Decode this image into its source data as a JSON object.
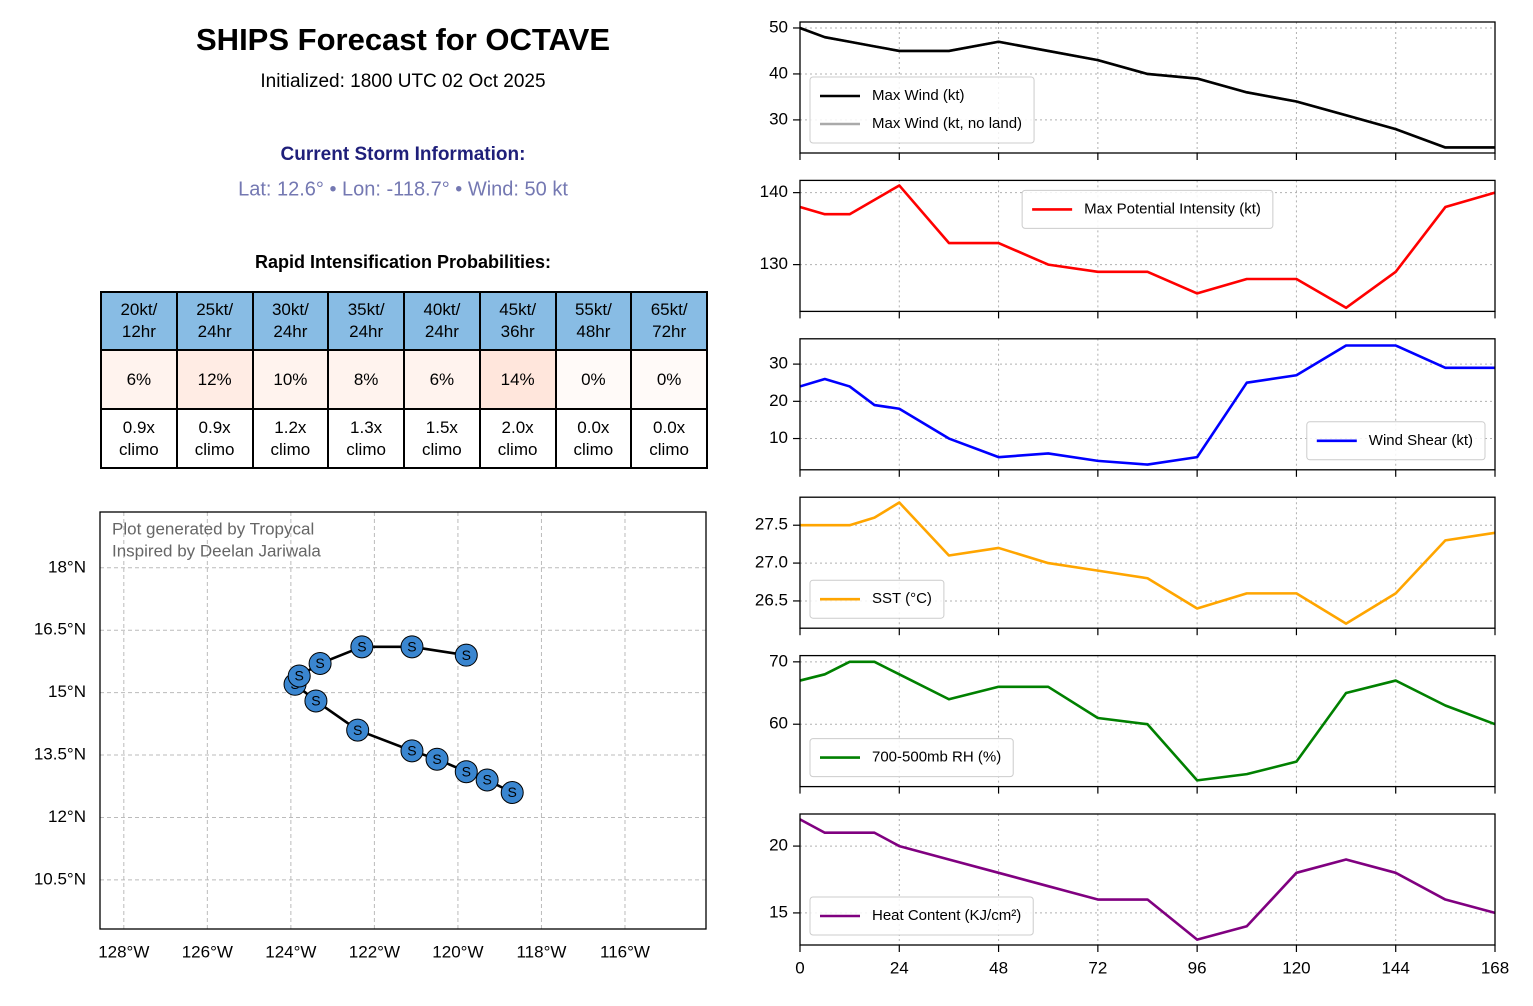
{
  "header": {
    "title": "SHIPS Forecast for OCTAVE",
    "subtitle": "Initialized: 1800 UTC 02 Oct 2025",
    "storm_heading": "Current Storm Information:",
    "storm_info": "Lat: 12.6° • Lon: -118.7° • Wind: 50 kt",
    "ri_heading": "Rapid Intensification Probabilities:"
  },
  "table": {
    "header": [
      "20kt/\n12hr",
      "25kt/\n24hr",
      "30kt/\n24hr",
      "35kt/\n24hr",
      "40kt/\n24hr",
      "45kt/\n36hr",
      "55kt/\n48hr",
      "65kt/\n72hr"
    ],
    "rows": [
      [
        "6%",
        "12%",
        "10%",
        "8%",
        "6%",
        "14%",
        "0%",
        "0%"
      ],
      [
        "0.9x\nclimo",
        "0.9x\nclimo",
        "1.2x\nclimo",
        "1.3x\nclimo",
        "1.5x\nclimo",
        "2.0x\nclimo",
        "0.0x\nclimo",
        "0.0x\nclimo"
      ]
    ]
  },
  "chart_data": [
    {
      "type": "track",
      "annotations": [
        "Plot generated by Tropycal",
        "Inspired by Deelan Jariwala"
      ],
      "color": "#3a86d0",
      "x": [
        -118.7,
        -119.3,
        -119.8,
        -120.5,
        -121.1,
        -122.4,
        -123.4,
        -123.9,
        -123.8,
        -123.3,
        -122.3,
        -121.1,
        -119.8
      ],
      "y": [
        12.6,
        12.9,
        13.1,
        13.4,
        13.6,
        14.1,
        14.8,
        15.2,
        15.4,
        15.7,
        16.1,
        16.1,
        15.9
      ],
      "labels": [
        "S",
        "S",
        "S",
        "S",
        "S",
        "S",
        "S",
        "S",
        "S",
        "S",
        "S",
        "S",
        "S"
      ],
      "xlim": [
        -128.57,
        -114.06
      ],
      "xticks": [
        {
          "value": -128,
          "label": "128°W"
        },
        {
          "value": -126,
          "label": "126°W"
        },
        {
          "value": -124,
          "label": "124°W"
        },
        {
          "value": -122,
          "label": "122°W"
        },
        {
          "value": -120,
          "label": "120°W"
        },
        {
          "value": -118,
          "label": "118°W"
        },
        {
          "value": -116,
          "label": "116°W"
        }
      ],
      "ylim": [
        9.32,
        19.34
      ],
      "yticks": [
        {
          "value": 10.5,
          "label": "10.5°N"
        },
        {
          "value": 12,
          "label": "12°N"
        },
        {
          "value": 13.5,
          "label": "13.5°N"
        },
        {
          "value": 15,
          "label": "15°N"
        },
        {
          "value": 16.5,
          "label": "16.5°N"
        },
        {
          "value": 18,
          "label": "18°N"
        }
      ],
      "grid": true
    },
    {
      "type": "line",
      "x": [
        0,
        6,
        12,
        18,
        24,
        36,
        48,
        60,
        72,
        84,
        96,
        108,
        120,
        132,
        144,
        156,
        168
      ],
      "xlim": [
        0,
        168
      ],
      "xticks": [
        0,
        24,
        48,
        72,
        96,
        120,
        144,
        168
      ],
      "ylim": [
        22.8,
        51.3
      ],
      "yticks": [
        30,
        40,
        50
      ],
      "grid": true,
      "legend": "lower left",
      "series": [
        {
          "name": "Max Wind (kt)",
          "color": "#000000",
          "values": [
            50,
            48,
            47,
            46,
            45,
            45,
            47,
            45,
            43,
            40,
            39,
            36,
            34,
            31,
            28,
            24,
            24
          ]
        },
        {
          "name": "Max Wind (kt, no land)",
          "color": "#aaaaaa",
          "values": [
            50,
            48,
            47,
            46,
            45,
            45,
            47,
            45,
            43,
            40,
            39,
            36,
            34,
            31,
            28,
            24,
            24
          ]
        }
      ]
    },
    {
      "type": "line",
      "x": [
        0,
        6,
        12,
        18,
        24,
        36,
        48,
        60,
        72,
        84,
        96,
        108,
        120,
        132,
        144,
        156,
        168
      ],
      "xlim": [
        0,
        168
      ],
      "xticks": [
        0,
        24,
        48,
        72,
        96,
        120,
        144,
        168
      ],
      "ylim": [
        123.5,
        141.7
      ],
      "yticks": [
        130,
        140
      ],
      "grid": true,
      "legend": "upper center",
      "series": [
        {
          "name": "Max Potential Intensity (kt)",
          "color": "#ff0000",
          "values": [
            138,
            137,
            137,
            139,
            141,
            133,
            133,
            130,
            129,
            129,
            126,
            128,
            128,
            124,
            129,
            138,
            140
          ]
        }
      ]
    },
    {
      "type": "line",
      "x": [
        0,
        6,
        12,
        18,
        24,
        36,
        48,
        60,
        72,
        84,
        96,
        108,
        120,
        132,
        144,
        156,
        168
      ],
      "xlim": [
        0,
        168
      ],
      "xticks": [
        0,
        24,
        48,
        72,
        96,
        120,
        144,
        168
      ],
      "ylim": [
        1.6,
        36.8
      ],
      "yticks": [
        10,
        20,
        30
      ],
      "grid": true,
      "legend": "lower right",
      "series": [
        {
          "name": "Wind Shear (kt)",
          "color": "#0000ff",
          "values": [
            24,
            26,
            24,
            19,
            18,
            10,
            5,
            6,
            4,
            3,
            5,
            25,
            27,
            35,
            35,
            29,
            29
          ]
        }
      ]
    },
    {
      "type": "line",
      "x": [
        0,
        6,
        12,
        18,
        24,
        36,
        48,
        60,
        72,
        84,
        96,
        108,
        120,
        132,
        144,
        156,
        168
      ],
      "xlim": [
        0,
        168
      ],
      "xticks": [
        0,
        24,
        48,
        72,
        96,
        120,
        144,
        168
      ],
      "ylim": [
        26.14,
        27.87
      ],
      "yticks": [
        {
          "value": 26.5,
          "label": "26.5"
        },
        {
          "value": 27,
          "label": "27.0"
        },
        {
          "value": 27.5,
          "label": "27.5"
        }
      ],
      "grid": true,
      "legend": "lower left",
      "series": [
        {
          "name": "SST (°C)",
          "color": "#ffa500",
          "values": [
            27.5,
            27.5,
            27.5,
            27.6,
            27.8,
            27.1,
            27.2,
            27.0,
            26.9,
            26.8,
            26.4,
            26.6,
            26.6,
            26.2,
            26.6,
            27.3,
            27.4
          ]
        }
      ]
    },
    {
      "type": "line",
      "x": [
        0,
        6,
        12,
        18,
        24,
        36,
        48,
        60,
        72,
        84,
        96,
        108,
        120,
        132,
        144,
        156,
        168
      ],
      "xlim": [
        0,
        168
      ],
      "xticks": [
        0,
        24,
        48,
        72,
        96,
        120,
        144,
        168
      ],
      "ylim": [
        50,
        71
      ],
      "yticks": [
        60,
        70
      ],
      "grid": true,
      "legend": "lower left",
      "series": [
        {
          "name": "700-500mb RH (%)",
          "color": "#008000",
          "values": [
            67,
            68,
            70,
            70,
            68,
            64,
            66,
            66,
            61,
            60,
            51,
            52,
            54,
            65,
            67,
            63,
            60
          ]
        }
      ]
    },
    {
      "type": "line",
      "x": [
        0,
        6,
        12,
        18,
        24,
        36,
        48,
        60,
        72,
        84,
        96,
        108,
        120,
        132,
        144,
        156,
        168
      ],
      "xlim": [
        0,
        168
      ],
      "xticks": [
        0,
        24,
        48,
        72,
        96,
        120,
        144,
        168
      ],
      "ylim": [
        12.6,
        22.4
      ],
      "yticks": [
        15,
        20
      ],
      "grid": true,
      "legend": "lower left",
      "series": [
        {
          "name": "Heat Content (KJ/cm²)",
          "color": "#800080",
          "values": [
            22,
            21,
            21,
            21,
            20,
            19,
            18,
            17,
            16,
            16,
            13,
            14,
            18,
            19,
            18,
            16,
            15
          ]
        }
      ]
    }
  ]
}
